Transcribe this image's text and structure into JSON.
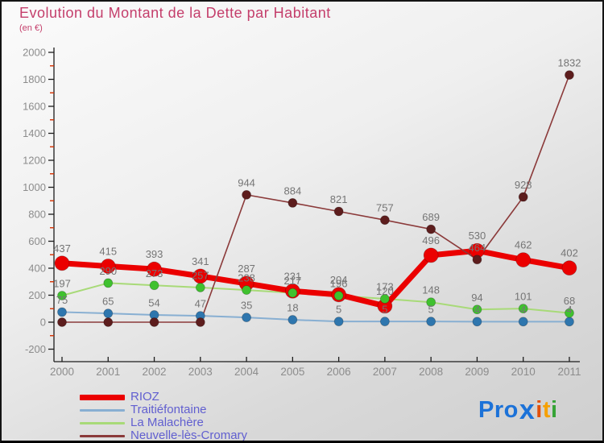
{
  "chart_data": {
    "type": "line",
    "title": "Evolution du Montant de la Dette par Habitant",
    "subtitle": "(en €)",
    "x_labels": [
      "2000",
      "2001",
      "2002",
      "2003",
      "2004",
      "2005",
      "2006",
      "2007",
      "2008",
      "2009",
      "2010",
      "2011"
    ],
    "ylim": [
      -200,
      2000
    ],
    "ytick_major_step": 200,
    "ytick_minor_step": 100,
    "grid": false,
    "legend_position": "bottom-left",
    "axis_color": "#1c1c1c",
    "minor_tick_color": "#d63000",
    "tick_label_color": "#8c8c8c",
    "point_label_color": "#757575",
    "series": [
      {
        "name": "RIOZ",
        "line_color": "#eb0000",
        "marker_color": "#eb0000",
        "line_width": 7,
        "marker_radius": 9,
        "values": [
          437,
          415,
          393,
          341,
          287,
          231,
          204,
          120,
          496,
          530,
          462,
          402
        ],
        "labels": [
          "437",
          "415",
          "393",
          "341",
          "287",
          "231",
          "204",
          "120",
          "496",
          "530",
          "462",
          "402"
        ]
      },
      {
        "name": "Traitiéfontaine",
        "line_color": "#88afd2",
        "marker_color": "#2e76ae",
        "line_width": 2,
        "marker_radius": 5.5,
        "values": [
          75,
          65,
          54,
          47,
          35,
          18,
          5,
          5,
          5,
          4,
          4,
          4
        ],
        "labels": [
          "75",
          "65",
          "54",
          "47",
          "35",
          "18",
          "5",
          "5",
          "5",
          "4",
          "4",
          "4"
        ]
      },
      {
        "name": "La Malachère",
        "line_color": "#a8da78",
        "marker_color": "#3fc12e",
        "line_width": 2,
        "marker_radius": 5.5,
        "values": [
          197,
          290,
          273,
          257,
          238,
          217,
          196,
          173,
          148,
          94,
          101,
          68
        ],
        "labels": [
          "197",
          "290",
          "273",
          "257",
          "238",
          "217",
          "196",
          "173",
          "148",
          "94",
          "101",
          "68"
        ]
      },
      {
        "name": "Neuvelle-lès-Cromary",
        "line_color": "#8b3a3a",
        "marker_color": "#5d1d1d",
        "line_width": 1.6,
        "marker_radius": 5.5,
        "values": [
          0,
          0,
          0,
          0,
          944,
          884,
          821,
          757,
          689,
          464,
          928,
          1832
        ],
        "labels": [
          "",
          "",
          "",
          "",
          "944",
          "884",
          "821",
          "757",
          "689",
          "464",
          "928",
          "1832"
        ]
      }
    ]
  },
  "logo": {
    "text": "Proxiti",
    "letters": [
      {
        "ch": "P",
        "color": "#1c72d8"
      },
      {
        "ch": "r",
        "color": "#1c72d8"
      },
      {
        "ch": "o",
        "color": "#1c72d8"
      },
      {
        "ch": "x",
        "color": "#1c72d8",
        "big": true
      },
      {
        "ch": "i",
        "color": "#e2500a"
      },
      {
        "ch": "t",
        "color": "#f6a000"
      },
      {
        "ch": "i",
        "color": "#36a336"
      }
    ]
  }
}
